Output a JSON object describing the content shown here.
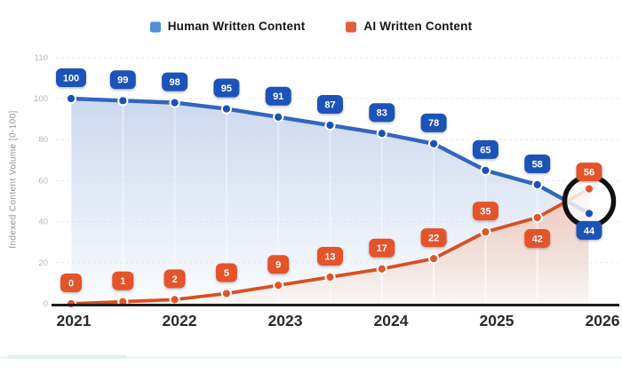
{
  "legend": {
    "items": [
      {
        "label": "Human Written Content",
        "color": "#4e8fd8"
      },
      {
        "label": "AI Written Content",
        "color": "#e55f39"
      }
    ]
  },
  "chart_data": {
    "type": "line",
    "title": "",
    "xlabel": "",
    "ylabel": "Indexed Content Volume [0-100]",
    "x_tick_labels": [
      "2021",
      "2022",
      "2023",
      "2024",
      "2025",
      "2026"
    ],
    "y_tick_labels": [
      "0",
      "20",
      "40",
      "60",
      "80",
      "100",
      "110"
    ],
    "ylim": [
      0,
      110
    ],
    "grid": "horizontal-dashed",
    "legend_position": "top-center",
    "point_labels_shown": true,
    "x": [
      2021,
      2021.5,
      2022,
      2022.5,
      2023,
      2023.5,
      2024,
      2024.5,
      2025,
      2025.5,
      2026
    ],
    "series": [
      {
        "name": "Human Written Content",
        "values": [
          100,
          99,
          98,
          95,
          91,
          87,
          83,
          78,
          65,
          58,
          44
        ],
        "badge_color": "#1c52b8",
        "line_color": "#3266be",
        "fill_color": "#c9d6ee",
        "fill_fade_start_y_value": 100,
        "label_below_indices": [
          10
        ]
      },
      {
        "name": "AI Written Content",
        "values": [
          0,
          1,
          2,
          5,
          9,
          13,
          17,
          22,
          35,
          42,
          56
        ],
        "badge_color": "#e4532b",
        "line_color": "#d94f22",
        "fill_color": "#f5c3ac",
        "fill_fade_start_y_value": 66,
        "label_below_indices": [
          9
        ]
      }
    ],
    "annotations": [
      {
        "type": "ring",
        "x_index": 10,
        "color": "#101010",
        "description": "Black circle highlighting the 2026 crossover endpoints (AI 56 overtakes Human 44)"
      }
    ]
  }
}
